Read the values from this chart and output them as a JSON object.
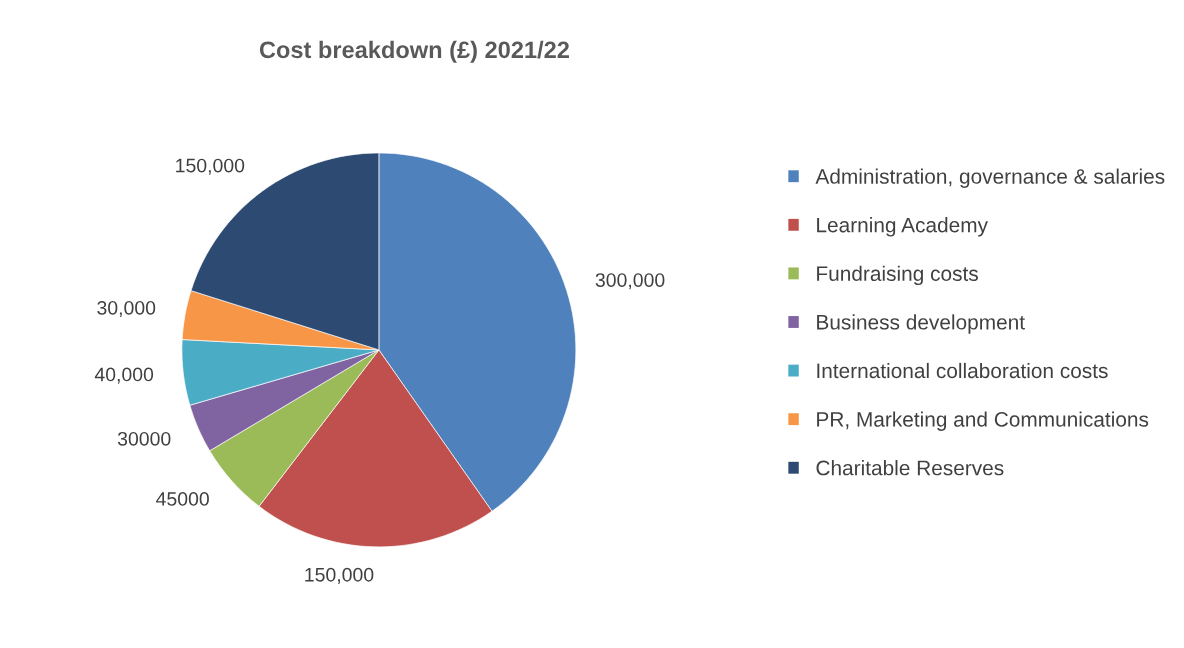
{
  "chart_data": {
    "type": "pie",
    "title": "Cost breakdown (£) 2021/22",
    "categories": [
      "Administration, governance & salaries",
      "Learning Academy",
      "Fundraising costs",
      "Business development",
      "International collaboration costs",
      "PR, Marketing and Communications",
      "Charitable Reserves"
    ],
    "values": [
      300000,
      150000,
      45000,
      30000,
      40000,
      30000,
      150000
    ],
    "value_labels": [
      "300,000",
      "150,000",
      "45000",
      "30000",
      "40,000",
      "30,000",
      "150,000"
    ],
    "colors": [
      "#4f81bd",
      "#c0504d",
      "#9bbb59",
      "#8064a2",
      "#4bacc6",
      "#f79646",
      "#2c4a72"
    ],
    "legend": "right"
  }
}
